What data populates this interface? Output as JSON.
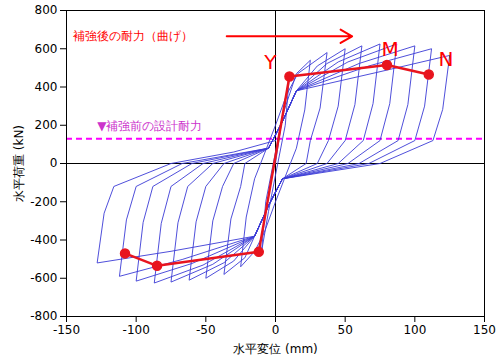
{
  "chart_data": {
    "type": "line",
    "x_label": "水平変位 (mm)",
    "y_label": "水平荷重 (kN)",
    "xlim": [
      -150,
      150
    ],
    "xticks": [
      -150,
      -100,
      -50,
      0,
      50,
      100,
      150
    ],
    "ylim": [
      -800,
      800
    ],
    "yticks": [
      -800,
      -600,
      -400,
      -200,
      0,
      200,
      400,
      600,
      800
    ],
    "grid": false,
    "series": [
      {
        "color": "#3b3bd6",
        "x": [
          0,
          4,
          10,
          7,
          0,
          -5,
          -10,
          -7,
          0,
          5,
          15,
          25,
          21,
          15,
          8,
          0,
          -8,
          -15,
          -25,
          -21,
          -15,
          -8,
          0,
          8,
          16,
          37,
          32,
          25,
          22,
          5,
          -5,
          -15,
          -22,
          -37,
          -32,
          -25,
          -22,
          -5,
          5,
          15,
          30,
          50,
          45,
          38,
          30,
          5,
          -5,
          -15,
          -30,
          -50,
          -45,
          -38,
          -30,
          -5,
          5,
          15,
          37,
          62,
          57,
          50,
          37,
          5,
          -5,
          -15,
          -37,
          -62,
          -57,
          -50,
          -37,
          -5,
          5,
          15,
          45,
          75,
          70,
          63,
          45,
          5,
          -5,
          -15,
          -45,
          -75,
          -70,
          -63,
          -45,
          -5,
          5,
          15,
          52,
          87,
          82,
          75,
          52,
          5,
          -5,
          -15,
          -52,
          -87,
          -82,
          -75,
          -52,
          -5,
          5,
          15,
          60,
          100,
          95,
          88,
          60,
          5,
          -5,
          -15,
          -60,
          -100,
          -95,
          -88,
          -60,
          -5,
          5,
          15,
          67,
          112,
          107,
          100,
          67,
          5,
          -5,
          -15,
          -67,
          -112,
          -107,
          -100,
          -67,
          -5,
          5,
          15,
          75,
          125,
          120,
          113,
          75,
          5,
          -5,
          -15,
          -75,
          -128,
          -123,
          -116,
          -75,
          -30,
          0
        ],
        "values": [
          0,
          200,
          460,
          200,
          -60,
          -250,
          -460,
          -200,
          60,
          250,
          470,
          540,
          280,
          80,
          -50,
          -200,
          -360,
          -460,
          -540,
          -280,
          -80,
          50,
          200,
          360,
          470,
          580,
          290,
          120,
          0,
          -80,
          -220,
          -380,
          -493,
          -580,
          -290,
          -120,
          0,
          80,
          220,
          380,
          510,
          600,
          300,
          120,
          0,
          -80,
          -220,
          -380,
          -510,
          -600,
          -300,
          -120,
          0,
          80,
          220,
          380,
          523,
          615,
          308,
          120,
          0,
          -80,
          -220,
          -380,
          -519,
          -610,
          -305,
          -120,
          0,
          80,
          220,
          380,
          531,
          625,
          313,
          120,
          0,
          -80,
          -220,
          -380,
          -527,
          -620,
          -310,
          -120,
          0,
          80,
          220,
          380,
          531,
          625,
          313,
          120,
          0,
          -80,
          -220,
          -380,
          -531,
          -625,
          -313,
          -120,
          0,
          80,
          220,
          380,
          523,
          615,
          308,
          120,
          0,
          -80,
          -220,
          -380,
          -523,
          -615,
          -308,
          -120,
          0,
          80,
          220,
          380,
          510,
          600,
          300,
          120,
          0,
          -80,
          -220,
          -380,
          -502,
          -590,
          -295,
          -120,
          0,
          80,
          220,
          380,
          480,
          565,
          283,
          120,
          0,
          -80,
          -220,
          -380,
          -459,
          -520,
          -260,
          -120,
          0,
          60,
          120
        ]
      },
      {
        "color": "#e8141e",
        "marker": "circle",
        "x": [
          -108,
          -85,
          -12,
          10,
          80,
          110
        ],
        "values": [
          -470,
          -535,
          -462,
          455,
          515,
          465
        ]
      }
    ],
    "reference_lines": [
      {
        "y": 130,
        "color": "#ff00ff",
        "line_style": "dashed"
      }
    ],
    "annotations": [
      {
        "text": "補強後の耐力（曲げ）",
        "x": -145,
        "y": 665,
        "color": "#ff0000",
        "arrow_x": [
          -35,
          55
        ]
      },
      {
        "text": "▼補強前の設計耐力",
        "x": -128,
        "y": 195,
        "color": "#cc33cc"
      },
      {
        "text": "Y",
        "x": -8,
        "y": 530,
        "color": "#ff0000"
      },
      {
        "text": "M",
        "x": 76,
        "y": 595,
        "color": "#ff0000"
      },
      {
        "text": "N",
        "x": 117,
        "y": 545,
        "color": "#ff0000"
      }
    ]
  }
}
